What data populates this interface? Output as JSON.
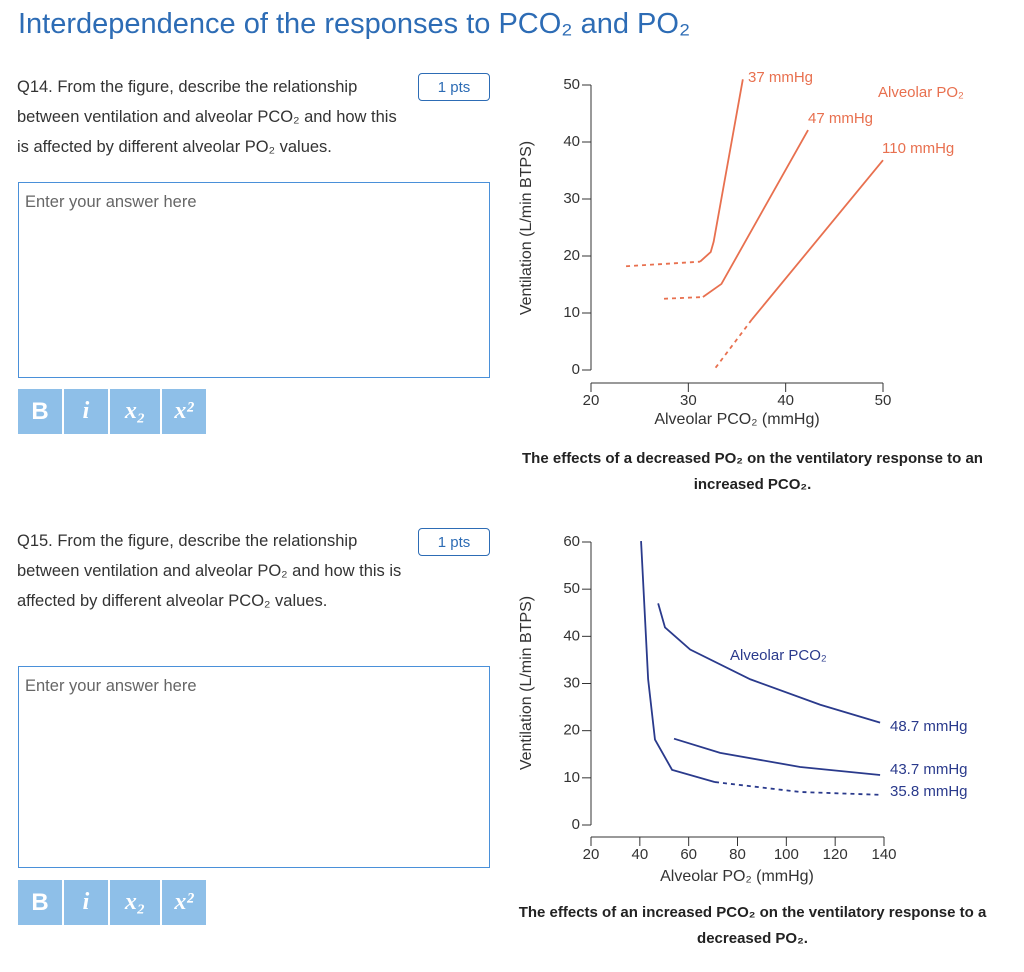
{
  "header": {
    "title": "Interdependence of the responses to PCO₂ and PO₂"
  },
  "toolbar": [
    "B",
    "i",
    "x₂",
    "x²"
  ],
  "questions": [
    {
      "text": "Q14. From the figure, describe the relationship between ventilation and alveolar PCO₂ and how this is affected by different alveolar PO₂ values.",
      "points": "1 pts",
      "placeholder": "Enter your answer here"
    },
    {
      "text": "Q15. From the figure, describe the relationship between ventilation and alveolar PO₂ and how this is affected by different alveolar PCO₂ values.",
      "points": "1 pts",
      "placeholder": "Enter your answer here"
    }
  ],
  "chart_data": [
    {
      "type": "line",
      "xlabel": "Alveolar PCO₂ (mmHg)",
      "ylabel": "Ventilation (L/min BTPS)",
      "caption": "The effects of a decreased PO₂ on the ventilatory response to an increased PCO₂.",
      "annotations": [
        "Alveolar PO₂"
      ],
      "xlim": [
        20,
        50
      ],
      "ylim": [
        0,
        50
      ],
      "xticks": [
        20,
        30,
        40,
        50
      ],
      "yticks": [
        0,
        10,
        20,
        30,
        40,
        50
      ],
      "series": [
        {
          "color": "#e8704f",
          "style": "dashed",
          "x": [
            23.6,
            31.2
          ],
          "values": [
            18.2,
            19.0
          ]
        },
        {
          "name": "37 mmHg",
          "color": "#e8704f",
          "x": [
            31.2,
            32.3,
            32.6,
            35.6
          ],
          "values": [
            19.0,
            20.7,
            22.5,
            51.0
          ]
        },
        {
          "color": "#e8704f",
          "style": "dashed",
          "x": [
            27.5,
            31.5
          ],
          "values": [
            12.5,
            12.8
          ]
        },
        {
          "name": "47 mmHg",
          "color": "#e8704f",
          "x": [
            31.5,
            33.4,
            42.3
          ],
          "values": [
            12.8,
            15.1,
            42.1
          ]
        },
        {
          "color": "#e8704f",
          "style": "dashed",
          "x": [
            32.8,
            36.5
          ],
          "values": [
            0.4,
            8.8
          ]
        },
        {
          "name": "110 mmHg",
          "color": "#e8704f",
          "x": [
            36.5,
            50
          ],
          "values": [
            8.8,
            36.8
          ]
        }
      ]
    },
    {
      "type": "line",
      "xlabel": "Alveolar PO₂ (mmHg)",
      "ylabel": "Ventilation (L/min BTPS)",
      "caption": "The effects of an increased PCO₂ on the ventilatory response to a decreased PO₂.",
      "annotations": [
        "Alveolar PCO₂"
      ],
      "xlim": [
        20,
        140
      ],
      "ylim": [
        0,
        60
      ],
      "xticks": [
        20,
        40,
        60,
        80,
        100,
        120,
        140
      ],
      "yticks": [
        0,
        10,
        20,
        30,
        40,
        50,
        60
      ],
      "series": [
        {
          "name": "48.7 mmHg",
          "color": "#2a3a8c",
          "x": [
            47.5,
            50.3,
            60.6,
            85.2,
            113.9,
            138.4
          ],
          "values": [
            47,
            41.9,
            37.2,
            30.9,
            25.5,
            21.7
          ]
        },
        {
          "name": "43.7 mmHg",
          "color": "#2a3a8c",
          "x": [
            54,
            72.9,
            105.7,
            138.4
          ],
          "values": [
            18.3,
            15.3,
            12.3,
            10.6
          ]
        },
        {
          "name": "35.8 mmHg",
          "color": "#2a3a8c",
          "x": [
            40.5,
            43.4,
            46.2,
            53.2,
            70.8
          ],
          "values": [
            60.2,
            30.9,
            18.1,
            11.7,
            9.1
          ]
        },
        {
          "color": "#2a3a8c",
          "style": "dashed",
          "x": [
            70.8,
            105.7,
            138.4
          ],
          "values": [
            9.1,
            7.0,
            6.4
          ]
        }
      ]
    }
  ]
}
